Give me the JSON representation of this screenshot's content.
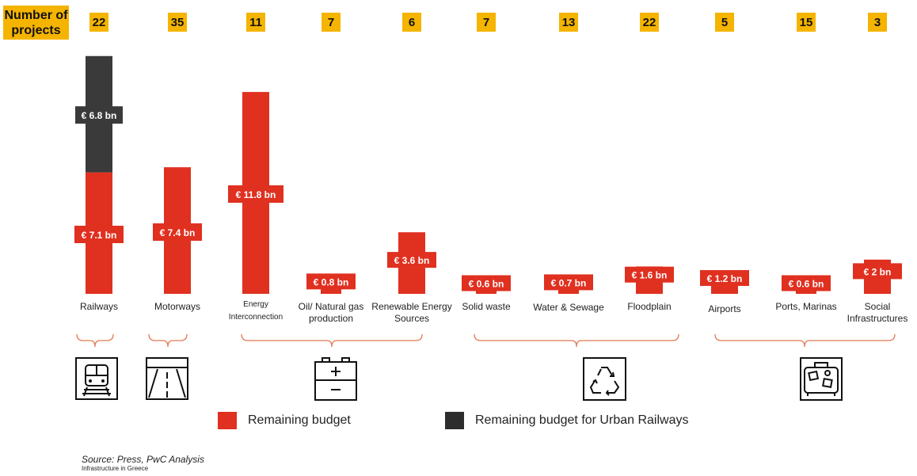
{
  "header": {
    "label": "Number of projects"
  },
  "legend": {
    "remaining": "Remaining budget",
    "urban": "Remaining budget for Urban Railways"
  },
  "source": "Source: Press, PwC Analysis",
  "subsource": "Infrastructure in Greece",
  "colors": {
    "red": "#e03020",
    "dark": "#3a3a3a",
    "yellow": "#f5b400",
    "bracket": "#e07a50"
  },
  "chart_data": {
    "type": "bar",
    "stacked": true,
    "units": "€ bn",
    "categories": [
      "Railways",
      "Motorways",
      "Energy Interconnection",
      "Oil/ Natural gas production",
      "Renewable Energy Sources",
      "Solid waste",
      "Water & Sewage",
      "Floodplain",
      "Airports",
      "Ports, Marinas",
      "Social Infrastructures"
    ],
    "project_counts": [
      22,
      35,
      11,
      7,
      6,
      7,
      13,
      22,
      5,
      15,
      3
    ],
    "series": [
      {
        "name": "Remaining budget",
        "values": [
          7.1,
          7.4,
          11.8,
          0.8,
          3.6,
          0.6,
          0.7,
          1.6,
          1.2,
          0.6,
          2.0
        ],
        "labels": [
          "€ 7.1 bn",
          "€ 7.4 bn",
          "€ 11.8 bn",
          "€ 0.8 bn",
          "€ 3.6 bn",
          "€ 0.6 bn",
          "€ 0.7 bn",
          "€ 1.6 bn",
          "€ 1.2 bn",
          "€ 0.6 bn",
          "€ 2 bn"
        ]
      },
      {
        "name": "Remaining budget for Urban Railways",
        "values": [
          6.8,
          0,
          0,
          0,
          0,
          0,
          0,
          0,
          0,
          0,
          0
        ],
        "labels": [
          "€ 6.8 bn",
          "",
          "",
          "",
          "",
          "",
          "",
          "",
          "",
          "",
          ""
        ]
      }
    ]
  }
}
